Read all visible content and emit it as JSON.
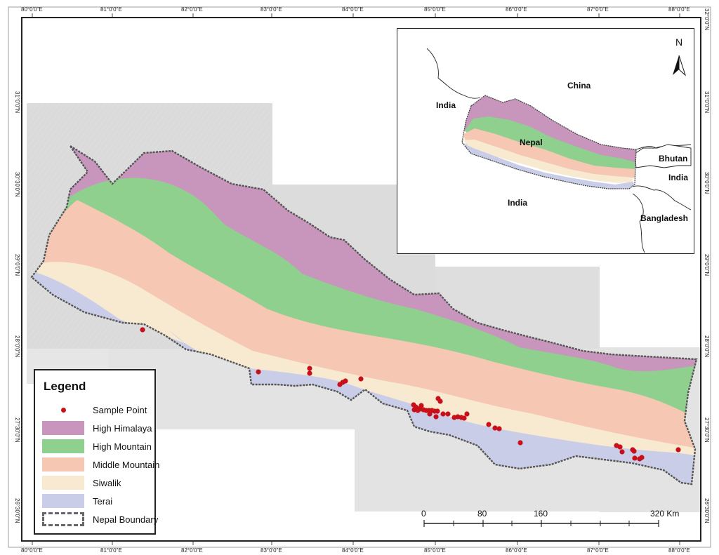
{
  "legend": {
    "title": "Legend",
    "items": [
      {
        "label": "Sample Point",
        "type": "point",
        "color": "#c8101a"
      },
      {
        "label": "High Himalaya",
        "type": "fill",
        "color": "#c896bc"
      },
      {
        "label": "High Mountain",
        "type": "fill",
        "color": "#8fd08f"
      },
      {
        "label": "Middle Mountain",
        "type": "fill",
        "color": "#f6c7b2"
      },
      {
        "label": "Siwalik",
        "type": "fill",
        "color": "#f8ead0"
      },
      {
        "label": "Terai",
        "type": "fill",
        "color": "#c9cde8"
      },
      {
        "label": "Nepal Boundary",
        "type": "boundary",
        "color": "#555555"
      }
    ]
  },
  "axes": {
    "top_ticks": [
      "80°0'0\"E",
      "81°0'0\"E",
      "82°0'0\"E",
      "83°0'0\"E",
      "84°0'0\"E",
      "85°0'0\"E",
      "86°0'0\"E",
      "87°0'0\"E",
      "88°0'0\"E"
    ],
    "bottom_ticks": [
      "80°0'0\"E",
      "81°0'0\"E",
      "82°0'0\"E",
      "83°0'0\"E",
      "84°0'0\"E",
      "85°0'0\"E",
      "86°0'0\"E",
      "87°0'0\"E",
      "88°0'0\"E"
    ],
    "left_ticks": [
      "31°0'0\"N",
      "30°30'0\"N",
      "29°0'0\"N",
      "28°0'0\"N",
      "27°30'0\"N",
      "26°30'0\"N"
    ],
    "right_ticks": [
      "32°0'0\"N",
      "31°0'0\"N",
      "30°0'0\"N",
      "29°0'0\"N",
      "28°0'0\"N",
      "27°30'0\"N",
      "26°30'0\"N"
    ]
  },
  "scalebar": {
    "labels": [
      "0",
      "80",
      "160",
      "320 Km"
    ]
  },
  "inset": {
    "labels": {
      "china": "China",
      "india_nw": "India",
      "nepal": "Nepal",
      "india_s": "India",
      "bhutan": "Bhutan",
      "india_ne": "India",
      "bangladesh": "Bangladesh"
    },
    "north": "N"
  },
  "sample_points_count": 45,
  "colors": {
    "high_himalaya": "#c896bc",
    "high_mountain": "#8fd08f",
    "middle_mountain": "#f6c7b2",
    "siwalik": "#f8ead0",
    "terai": "#c9cde8",
    "hillshade": "#dcdcdc",
    "sample_point": "#c8101a"
  }
}
